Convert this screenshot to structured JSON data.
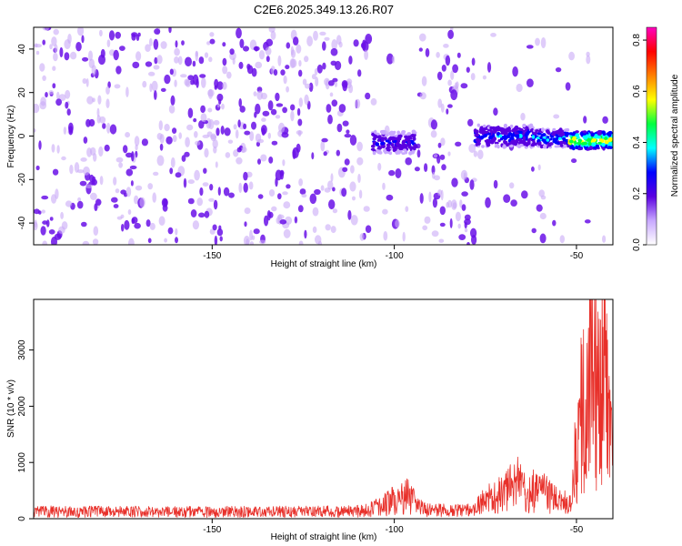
{
  "title": "C2E6.2025.349.13.26.R07",
  "chart_data": [
    {
      "type": "heatmap",
      "xlabel": "Height of straight line (km)",
      "ylabel": "Frequency (Hz)",
      "xlim": [
        -199,
        -40
      ],
      "ylim": [
        -50,
        50
      ],
      "x_ticks": [
        {
          "value": -150,
          "label": "-150"
        },
        {
          "value": -100,
          "label": "-100"
        },
        {
          "value": -50,
          "label": "-50"
        }
      ],
      "y_ticks": [
        {
          "value": -40,
          "label": "-40"
        },
        {
          "value": -20,
          "label": "-20"
        },
        {
          "value": 0,
          "label": "0"
        },
        {
          "value": 20,
          "label": "20"
        },
        {
          "value": 40,
          "label": "40"
        }
      ],
      "colorbar": {
        "label": "Normalized spectral amplitude",
        "range": [
          0,
          0.85
        ],
        "ticks": [
          {
            "value": 0.0,
            "label": "0.0"
          },
          {
            "value": 0.2,
            "label": "0.2"
          },
          {
            "value": 0.4,
            "label": "0.4"
          },
          {
            "value": 0.6,
            "label": "0.6"
          },
          {
            "value": 0.8,
            "label": "0.8"
          }
        ],
        "colors": [
          "#ffffff",
          "#c8a8ff",
          "#5a00e0",
          "#0000ff",
          "#00ffff",
          "#00ff40",
          "#ffff00",
          "#ff8000",
          "#ff0000",
          "#ff00c0"
        ]
      },
      "noise_regions": [
        {
          "x": [
            -199,
            -110
          ],
          "amplitude": 0.15
        },
        {
          "x": [
            -110,
            -106
          ],
          "amplitude": 0.1
        },
        {
          "x": [
            -106,
            -100
          ],
          "amplitude": 0.05
        },
        {
          "x": [
            -100,
            -94
          ],
          "amplitude": 0.03
        },
        {
          "x": [
            -94,
            -78
          ],
          "amplitude": 0.14
        },
        {
          "x": [
            -78,
            -62
          ],
          "amplitude": 0.03
        },
        {
          "x": [
            -62,
            -58
          ],
          "amplitude": 0.06
        },
        {
          "x": [
            -58,
            -40
          ],
          "amplitude": 0.02
        }
      ],
      "signal_band": [
        {
          "x": [
            -106,
            -94
          ],
          "center": -3,
          "halfwidth": 5,
          "amplitude": 0.3
        },
        {
          "x": [
            -78,
            -62
          ],
          "center": 0,
          "halfwidth": 5,
          "amplitude": 0.35
        },
        {
          "x": [
            -62,
            -52
          ],
          "center": -1,
          "halfwidth": 4,
          "amplitude": 0.4
        },
        {
          "x": [
            -52,
            -40
          ],
          "center": -2,
          "halfwidth": 4,
          "amplitude": 0.65
        }
      ]
    },
    {
      "type": "line",
      "xlabel": "Height of straight line (km)",
      "ylabel": "SNR (10 * v/v)",
      "xlim": [
        -199,
        -40
      ],
      "ylim": [
        0,
        3900
      ],
      "x_ticks": [
        {
          "value": -150,
          "label": "-150"
        },
        {
          "value": -100,
          "label": "-100"
        },
        {
          "value": -50,
          "label": "-50"
        }
      ],
      "y_ticks": [
        {
          "value": 0,
          "label": "0"
        },
        {
          "value": 1000,
          "label": "1000"
        },
        {
          "value": 2000,
          "label": "2000"
        },
        {
          "value": 3000,
          "label": "3000"
        }
      ],
      "color": "#e8302a",
      "series": [
        {
          "x": [
            -199,
            -190,
            -180,
            -170,
            -160,
            -150,
            -140,
            -130,
            -120,
            -110,
            -104,
            -100,
            -98,
            -96,
            -94,
            -92,
            -88,
            -84,
            -80,
            -78,
            -76,
            -74,
            -72,
            -70,
            -68,
            -66,
            -64,
            -62,
            -60,
            -58,
            -56,
            -54,
            -52,
            -51,
            -50,
            -49,
            -48,
            -47,
            -46,
            -45,
            -44,
            -43,
            -42,
            -41,
            -40
          ],
          "y": [
            160,
            150,
            155,
            150,
            145,
            150,
            148,
            150,
            155,
            160,
            250,
            400,
            450,
            500,
            300,
            200,
            180,
            170,
            175,
            180,
            350,
            450,
            500,
            600,
            700,
            800,
            500,
            650,
            600,
            500,
            400,
            350,
            350,
            700,
            1500,
            2000,
            2600,
            3000,
            3600,
            3000,
            2400,
            3200,
            2800,
            1900,
            1200
          ]
        }
      ]
    }
  ]
}
